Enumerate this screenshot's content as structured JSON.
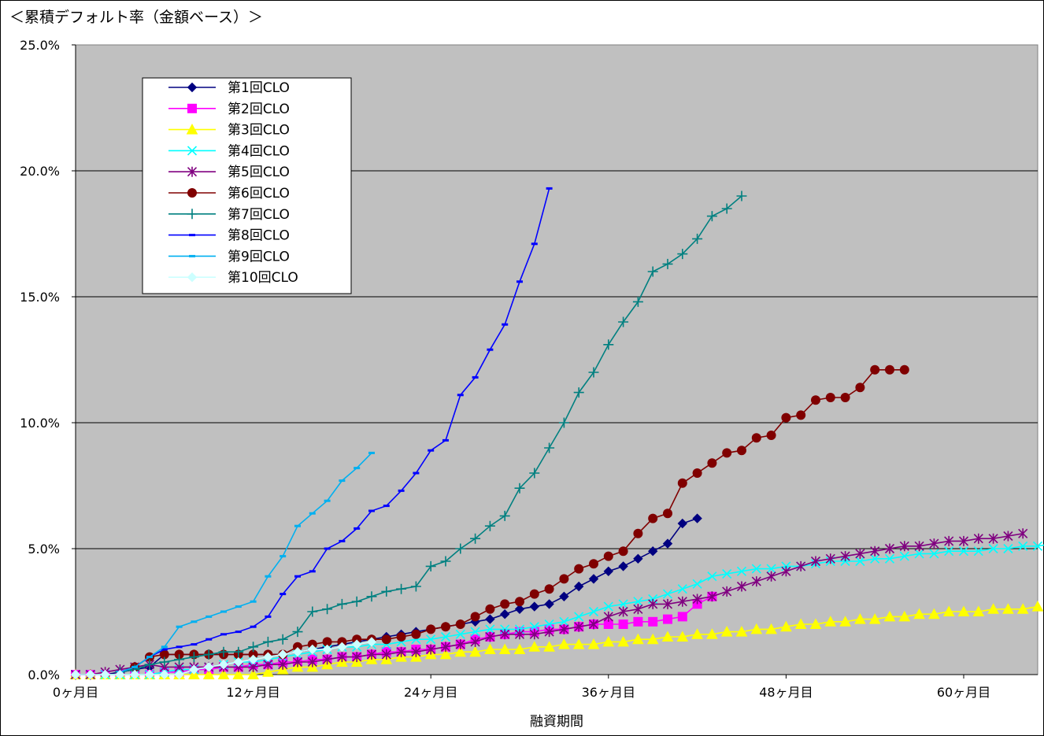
{
  "chart_data": {
    "type": "line",
    "title": "＜累積デフォルト率（金額ベース）＞",
    "xlabel": "融資期間",
    "ylabel": "",
    "xlim": [
      0,
      65
    ],
    "ylim": [
      0,
      25
    ],
    "xticks": [
      {
        "value": 0,
        "label": "0ヶ月目"
      },
      {
        "value": 12,
        "label": "12ヶ月目"
      },
      {
        "value": 24,
        "label": "24ヶ月目"
      },
      {
        "value": 36,
        "label": "36ヶ月目"
      },
      {
        "value": 48,
        "label": "48ヶ月目"
      },
      {
        "value": 60,
        "label": "60ヶ月目"
      }
    ],
    "yticks": [
      {
        "value": 0,
        "label": "0.0%"
      },
      {
        "value": 5,
        "label": "5.0%"
      },
      {
        "value": 10,
        "label": "10.0%"
      },
      {
        "value": 15,
        "label": "15.0%"
      },
      {
        "value": 20,
        "label": "20.0%"
      },
      {
        "value": 25,
        "label": "25.0%"
      }
    ],
    "grid": "horizontal",
    "background": "#c0c0c0",
    "legend_position": "top-left",
    "series": [
      {
        "name": "第1回CLO",
        "color": "#000080",
        "marker": "diamond",
        "x_start": 0,
        "values": [
          0,
          0,
          0,
          0.1,
          0.2,
          0.3,
          0.8,
          0.8,
          0.8,
          0.8,
          0.8,
          0.8,
          0.8,
          0.8,
          0.8,
          0.9,
          1.0,
          1.1,
          1.2,
          1.3,
          1.4,
          1.5,
          1.6,
          1.7,
          1.8,
          1.9,
          2.0,
          2.1,
          2.2,
          2.4,
          2.6,
          2.7,
          2.8,
          3.1,
          3.5,
          3.8,
          4.1,
          4.3,
          4.6,
          4.9,
          5.2,
          6.0,
          6.2
        ]
      },
      {
        "name": "第2回CLO",
        "color": "#ff00ff",
        "marker": "square",
        "x_start": 0,
        "values": [
          0,
          0,
          0,
          0,
          0,
          0,
          0.1,
          0.1,
          0.2,
          0.2,
          0.3,
          0.3,
          0.4,
          0.4,
          0.5,
          0.5,
          0.6,
          0.6,
          0.7,
          0.7,
          0.8,
          0.9,
          0.9,
          1.0,
          1.0,
          1.1,
          1.2,
          1.4,
          1.5,
          1.6,
          1.7,
          1.7,
          1.8,
          1.8,
          1.9,
          2.0,
          2.0,
          2.0,
          2.1,
          2.1,
          2.2,
          2.3,
          2.8,
          3.1
        ]
      },
      {
        "name": "第3回CLO",
        "color": "#ffff00",
        "marker": "triangle",
        "x_start": 0,
        "values": [
          0,
          0,
          0,
          0,
          0,
          0,
          0,
          0,
          0,
          0,
          0,
          0,
          0,
          0.1,
          0.2,
          0.3,
          0.3,
          0.4,
          0.5,
          0.5,
          0.6,
          0.6,
          0.7,
          0.7,
          0.8,
          0.8,
          0.9,
          0.9,
          1.0,
          1.0,
          1.0,
          1.1,
          1.1,
          1.2,
          1.2,
          1.2,
          1.3,
          1.3,
          1.4,
          1.4,
          1.5,
          1.5,
          1.6,
          1.6,
          1.7,
          1.7,
          1.8,
          1.8,
          1.9,
          2.0,
          2.0,
          2.1,
          2.1,
          2.2,
          2.2,
          2.3,
          2.3,
          2.4,
          2.4,
          2.5,
          2.5,
          2.5,
          2.6,
          2.6,
          2.6,
          2.7
        ]
      },
      {
        "name": "第4回CLO",
        "color": "#00ffff",
        "marker": "x",
        "x_start": 0,
        "values": [
          0,
          0,
          0,
          0,
          0,
          0,
          0.1,
          0.2,
          0.2,
          0.3,
          0.4,
          0.5,
          0.5,
          0.6,
          0.7,
          0.8,
          0.9,
          1.0,
          1.1,
          1.1,
          1.2,
          1.2,
          1.3,
          1.4,
          1.4,
          1.5,
          1.6,
          1.7,
          1.8,
          1.8,
          1.8,
          1.9,
          2.0,
          2.1,
          2.3,
          2.5,
          2.7,
          2.8,
          2.9,
          3.0,
          3.2,
          3.4,
          3.6,
          3.9,
          4.0,
          4.1,
          4.2,
          4.2,
          4.3,
          4.3,
          4.4,
          4.5,
          4.5,
          4.5,
          4.6,
          4.6,
          4.7,
          4.8,
          4.8,
          4.9,
          4.9,
          4.9,
          5.0,
          5.0,
          5.1,
          5.1,
          5.2,
          5.3
        ]
      },
      {
        "name": "第5回CLO",
        "color": "#800080",
        "marker": "asterisk",
        "x_start": 0,
        "values": [
          0,
          0,
          0.1,
          0.2,
          0.3,
          0.4,
          0.3,
          0.3,
          0.3,
          0.3,
          0.3,
          0.3,
          0.3,
          0.4,
          0.4,
          0.5,
          0.5,
          0.6,
          0.7,
          0.7,
          0.8,
          0.8,
          0.9,
          0.9,
          1.0,
          1.1,
          1.2,
          1.3,
          1.5,
          1.6,
          1.6,
          1.6,
          1.7,
          1.8,
          1.9,
          2.0,
          2.3,
          2.5,
          2.6,
          2.8,
          2.8,
          2.9,
          3.0,
          3.1,
          3.3,
          3.5,
          3.7,
          3.9,
          4.1,
          4.3,
          4.5,
          4.6,
          4.7,
          4.8,
          4.9,
          5.0,
          5.1,
          5.1,
          5.2,
          5.3,
          5.3,
          5.4,
          5.4,
          5.5,
          5.6
        ]
      },
      {
        "name": "第6回CLO",
        "color": "#800000",
        "marker": "circle",
        "x_start": 4,
        "values": [
          0.3,
          0.7,
          0.8,
          0.8,
          0.8,
          0.8,
          0.8,
          0.8,
          0.8,
          0.8,
          0.8,
          1.1,
          1.2,
          1.3,
          1.3,
          1.4,
          1.4,
          1.4,
          1.5,
          1.6,
          1.8,
          1.9,
          2.0,
          2.3,
          2.6,
          2.8,
          2.9,
          3.2,
          3.4,
          3.8,
          4.2,
          4.4,
          4.7,
          4.9,
          5.6,
          6.2,
          6.4,
          7.6,
          8.0,
          8.4,
          8.8,
          8.9,
          9.4,
          9.5,
          10.2,
          10.3,
          10.9,
          11.0,
          11.0,
          11.4,
          12.1,
          12.1,
          12.1
        ]
      },
      {
        "name": "第7回CLO",
        "color": "#008080",
        "marker": "plus",
        "x_start": 3,
        "values": [
          0.1,
          0.2,
          0.4,
          0.5,
          0.6,
          0.7,
          0.8,
          0.9,
          0.9,
          1.1,
          1.3,
          1.4,
          1.7,
          2.5,
          2.6,
          2.8,
          2.9,
          3.1,
          3.3,
          3.4,
          3.5,
          4.3,
          4.5,
          5.0,
          5.4,
          5.9,
          6.3,
          7.4,
          8.0,
          9.0,
          10.0,
          11.2,
          12.0,
          13.1,
          14.0,
          14.8,
          16.0,
          16.3,
          16.7,
          17.3,
          18.2,
          18.5,
          19.0
        ]
      },
      {
        "name": "第8回CLO",
        "color": "#0000ff",
        "marker": "dash",
        "x_start": 3,
        "values": [
          0.1,
          0.3,
          0.7,
          1.0,
          1.1,
          1.2,
          1.4,
          1.6,
          1.7,
          1.9,
          2.3,
          3.2,
          3.9,
          4.1,
          5.0,
          5.3,
          5.8,
          6.5,
          6.7,
          7.3,
          8.0,
          8.9,
          9.3,
          11.1,
          11.8,
          12.9,
          13.9,
          15.6,
          17.1,
          19.3
        ]
      },
      {
        "name": "第9回CLO",
        "color": "#00b0f0",
        "marker": "dash",
        "x_start": 3,
        "values": [
          0.1,
          0.3,
          0.7,
          1.1,
          1.9,
          2.1,
          2.3,
          2.5,
          2.7,
          2.9,
          3.9,
          4.7,
          5.9,
          6.4,
          6.9,
          7.7,
          8.2,
          8.8
        ]
      },
      {
        "name": "第10回CLO",
        "color": "#ccffff",
        "marker": "diamond",
        "x_start": 0,
        "values": [
          0,
          0,
          0,
          0,
          0,
          0,
          0,
          0,
          0.2,
          0.3,
          0.4,
          0.5,
          0.6,
          0.7,
          0.8,
          0.9,
          1.0,
          1.0,
          1.1,
          1.2,
          1.3
        ]
      }
    ]
  }
}
